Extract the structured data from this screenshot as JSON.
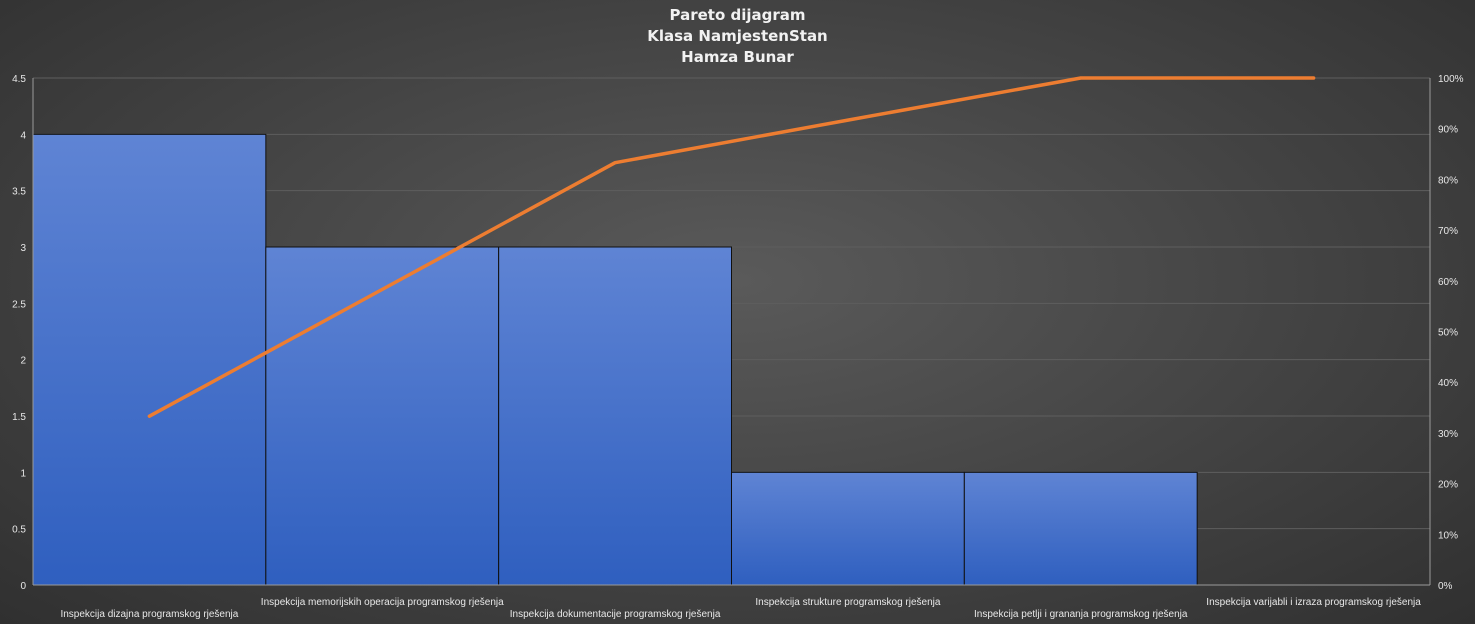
{
  "chart_data": {
    "type": "bar",
    "title_lines": [
      "Pareto dijagram",
      "Klasa NamjestenStan",
      "Hamza Bunar"
    ],
    "categories": [
      "Inspekcija dizajna programskog rješenja",
      "Inspekcija memorijskih operacija programskog rješenja",
      "Inspekcija dokumentacije programskog rješenja",
      "Inspekcija strukture programskog rješenja",
      "Inspekcija petlji i grananja programskog rješenja",
      "Inspekcija varijabli i izraza programskog rješenja"
    ],
    "series": [
      {
        "type": "bar",
        "values": [
          4,
          3,
          3,
          1,
          1,
          0
        ]
      },
      {
        "type": "line",
        "values": [
          33.3,
          58.3,
          83.3,
          91.7,
          100,
          100
        ]
      }
    ],
    "y_left": {
      "ticks": [
        "0",
        "0.5",
        "1",
        "1.5",
        "2",
        "2.5",
        "3",
        "3.5",
        "4",
        "4.5"
      ],
      "ylim": [
        0,
        4.5
      ]
    },
    "y_right": {
      "ticks": [
        "0%",
        "10%",
        "20%",
        "30%",
        "40%",
        "50%",
        "60%",
        "70%",
        "80%",
        "90%",
        "100%"
      ],
      "ylim": [
        0,
        100
      ]
    },
    "grid": true,
    "colors": {
      "bar_top": "#5f84d4",
      "bar_bottom": "#2f5fbf",
      "line": "#ed7d31",
      "grid": "#5e5e5e"
    }
  }
}
